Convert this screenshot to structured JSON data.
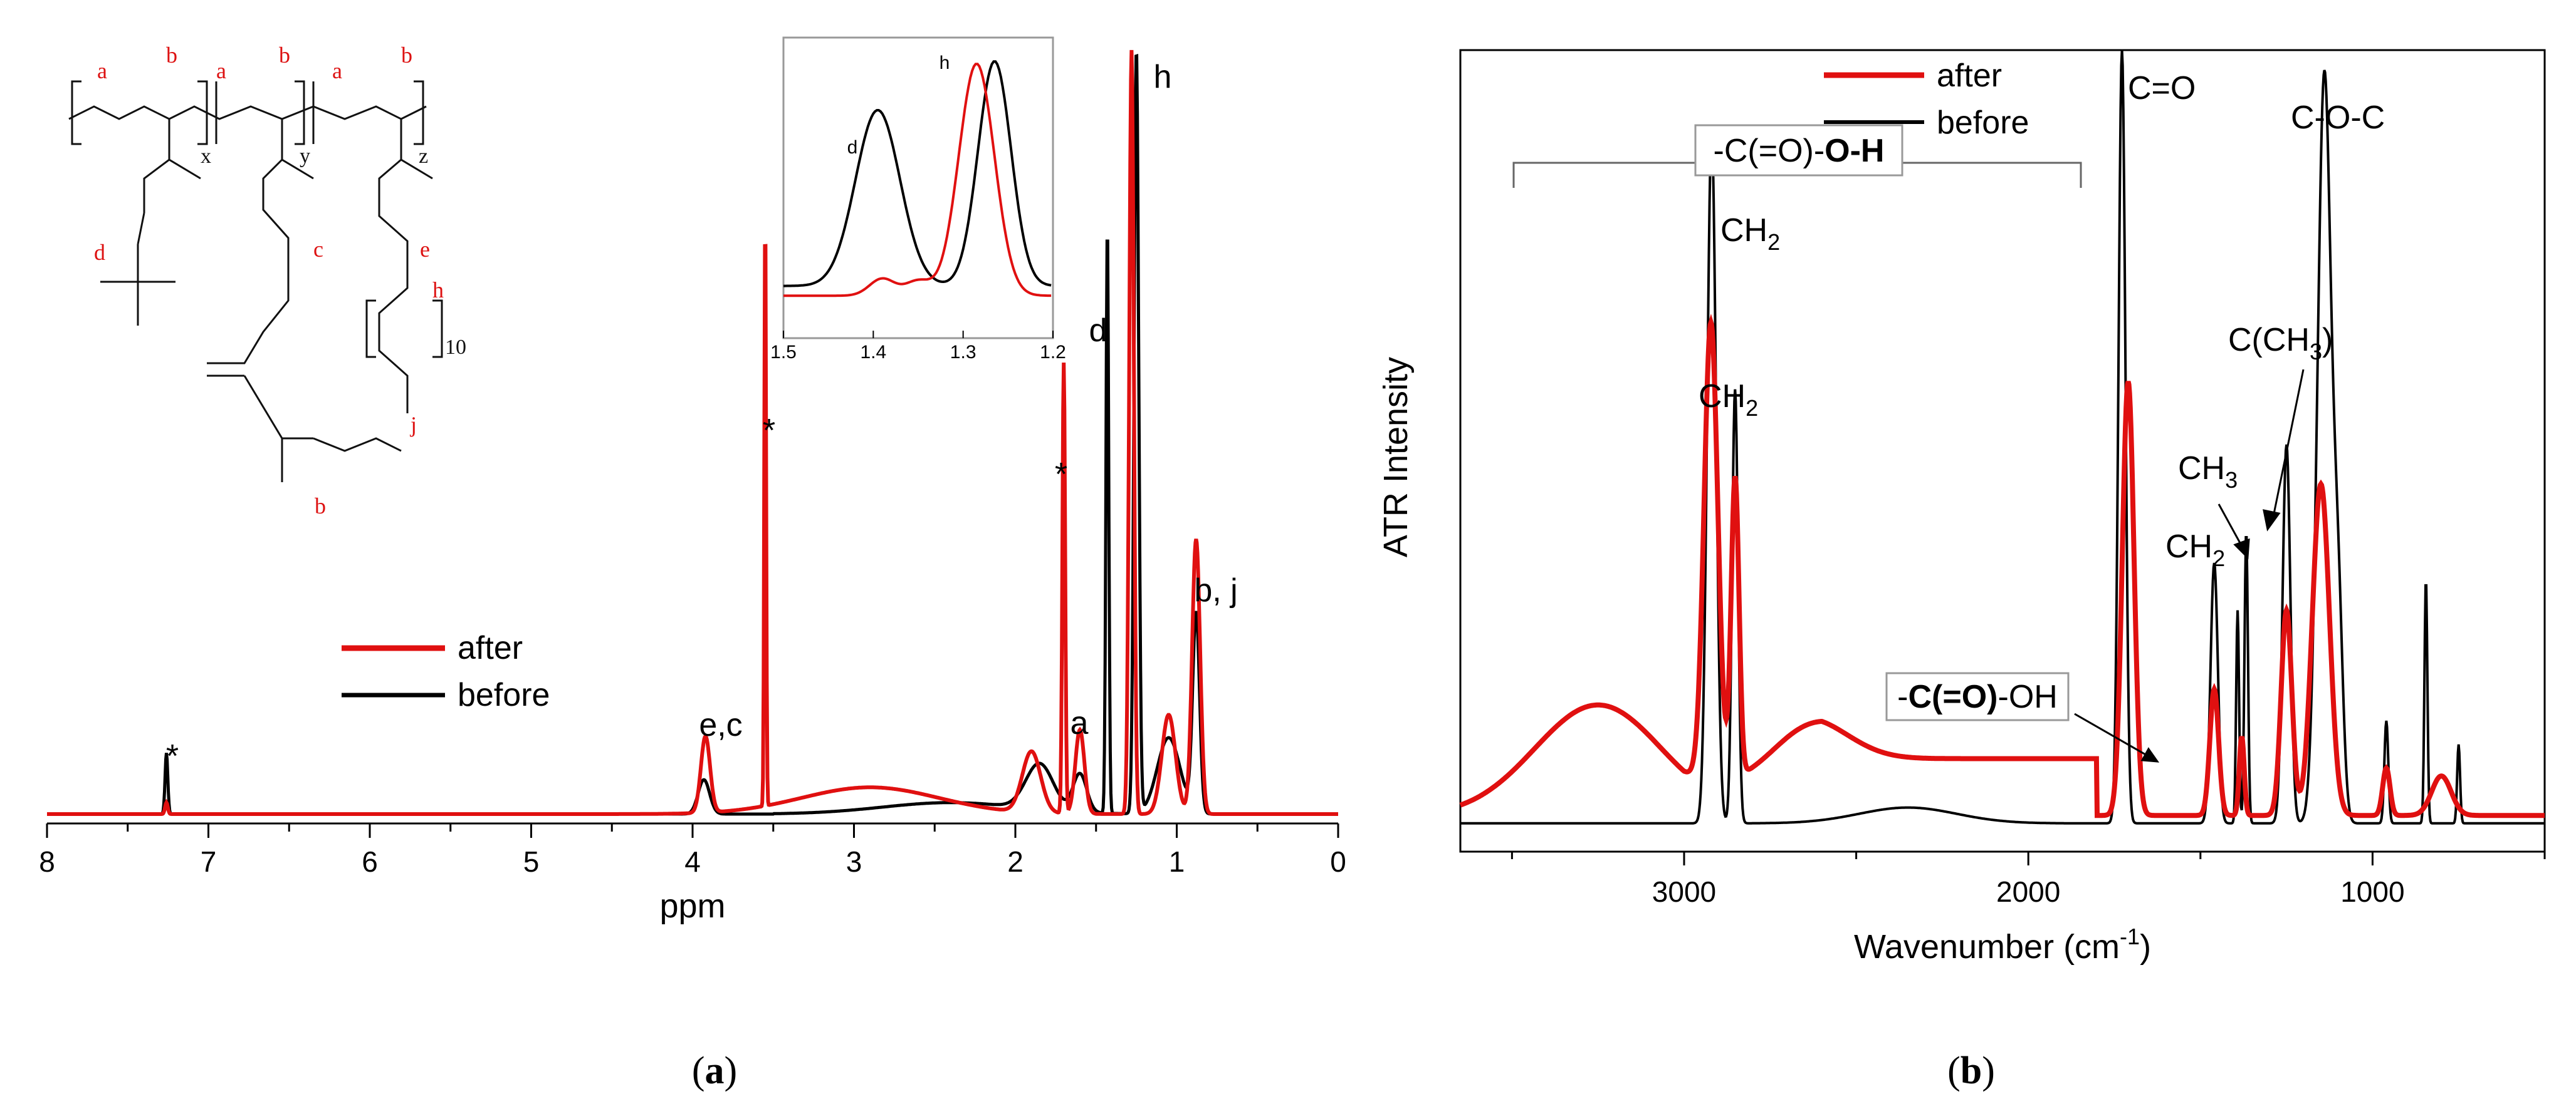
{
  "chart_data": [
    {
      "panel": "a",
      "type": "line",
      "title": "",
      "xlabel": "ppm",
      "ylabel": "",
      "xlim": [
        8,
        0
      ],
      "x_reversed": true,
      "x_ticks": [
        "8",
        "7",
        "6",
        "5",
        "4",
        "3",
        "2",
        "1",
        "0"
      ],
      "legend": {
        "position": "center-left",
        "entries": [
          "after",
          "before"
        ]
      },
      "series": [
        {
          "name": "after",
          "color": "#e01010"
        },
        {
          "name": "before",
          "color": "#000000"
        }
      ],
      "annotations": [
        "*",
        "*",
        "*",
        "e,c",
        "a",
        "d",
        "h",
        "b, j"
      ],
      "inset": {
        "xlim": [
          1.5,
          1.2
        ],
        "x_ticks": [
          "1.5",
          "1.4",
          "1.3",
          "1.2"
        ],
        "labels": [
          "d",
          "h"
        ]
      },
      "structure_labels": {
        "a": "a",
        "b": "b",
        "c": "c",
        "d": "d",
        "e": "e",
        "h": "h",
        "j": "j",
        "x": "x",
        "y": "y",
        "z": "z",
        "ten": "10"
      }
    },
    {
      "panel": "b",
      "type": "line",
      "title": "",
      "xlabel_main": "Wavenumber (cm",
      "xlabel_sup": "-1",
      "xlabel_end": ")",
      "ylabel": "ATR Intensity",
      "xlim": [
        3650,
        500
      ],
      "x_reversed": true,
      "x_ticks": [
        "3000",
        "2000",
        "1000"
      ],
      "legend": {
        "position": "top-left",
        "entries": [
          "after",
          "before"
        ]
      },
      "series": [
        {
          "name": "after",
          "color": "#e01010"
        },
        {
          "name": "before",
          "color": "#000000"
        }
      ],
      "annotations": {
        "cooh_box_pre": "-C(=O)-",
        "cooh_box_bold": "O-H",
        "ch2_a": "CH",
        "ch2_b": "CH",
        "ch2_c": "CH",
        "ch3": "CH",
        "sub2": "2",
        "sub3": "3",
        "co": "C=O",
        "coc": "C-O-C",
        "cch3_pre": "C(CH",
        "cch3_post": ")",
        "carbonyl_box_pre": "-",
        "carbonyl_box_bold": "C(=O)",
        "carbonyl_box_post": "-OH"
      }
    }
  ],
  "panel_labels": {
    "a": "a",
    "b": "b"
  }
}
